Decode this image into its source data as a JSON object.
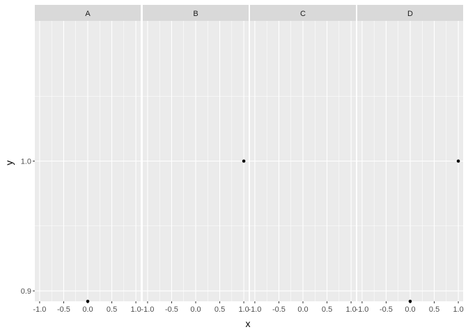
{
  "chart_data": {
    "type": "scatter",
    "xlabel": "x",
    "ylabel": "y",
    "xlim": [
      -1.1,
      1.1
    ],
    "ylim": [
      0.892,
      1.108
    ],
    "x_ticks": [
      -1.0,
      -0.5,
      0.0,
      0.5,
      1.0
    ],
    "x_tick_labels": [
      "-1.0",
      "-0.5",
      "0.0",
      "0.5",
      "1.0"
    ],
    "y_ticks": [
      0.9,
      1.0
    ],
    "y_tick_labels": [
      "0.9",
      "1.0"
    ],
    "grid": true,
    "panel_background": "#ebebeb",
    "strip_background": "#d9d9d9",
    "point_color": "#000000",
    "facets": [
      {
        "label": "A",
        "points": [
          {
            "x": 0.0,
            "y": 0.892
          }
        ]
      },
      {
        "label": "B",
        "points": [
          {
            "x": 1.0,
            "y": 1.0
          }
        ]
      },
      {
        "label": "C",
        "points": []
      },
      {
        "label": "D",
        "points": [
          {
            "x": 0.0,
            "y": 0.892
          },
          {
            "x": 1.0,
            "y": 1.0
          }
        ]
      }
    ]
  }
}
